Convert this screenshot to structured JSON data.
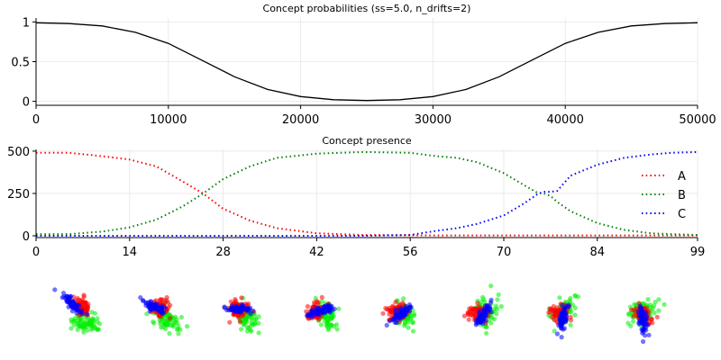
{
  "chart_data": [
    {
      "type": "line",
      "title": "Concept probabilities (ss=5.0, n_drifts=2)",
      "xlim": [
        0,
        50000
      ],
      "ylim": [
        -0.05,
        1.05
      ],
      "xticks": [
        0,
        10000,
        20000,
        30000,
        40000,
        50000
      ],
      "yticks": [
        0.0,
        0.5,
        1.0
      ],
      "grid": true,
      "series": [
        {
          "color": "#000000",
          "x": [
            0,
            2500,
            5000,
            7500,
            10000,
            12500,
            15000,
            17500,
            20000,
            22500,
            25000,
            27500,
            30000,
            32500,
            35000,
            37500,
            40000,
            42500,
            45000,
            47500,
            50000
          ],
          "values": [
            0.99,
            0.98,
            0.95,
            0.87,
            0.73,
            0.52,
            0.31,
            0.15,
            0.06,
            0.02,
            0.01,
            0.02,
            0.06,
            0.15,
            0.31,
            0.52,
            0.73,
            0.87,
            0.95,
            0.98,
            0.99
          ]
        }
      ]
    },
    {
      "type": "line",
      "title": "Concept presence",
      "xlim": [
        0,
        99
      ],
      "ylim": [
        0,
        500
      ],
      "xticks": [
        0,
        14,
        28,
        42,
        56,
        70,
        84,
        99
      ],
      "yticks": [
        0,
        250,
        500
      ],
      "grid": true,
      "legend_position": "right",
      "x": [
        0,
        5,
        10,
        14,
        18,
        22,
        25,
        28,
        32,
        36,
        42,
        49,
        56,
        60,
        63,
        66,
        70,
        73,
        75,
        76,
        77,
        78,
        80,
        84,
        88,
        92,
        95,
        99
      ],
      "series": [
        {
          "name": "A",
          "color": "#ff0000",
          "values": [
            490,
            490,
            470,
            450,
            410,
            320,
            250,
            160,
            90,
            45,
            15,
            5,
            3,
            2,
            2,
            2,
            2,
            2,
            2,
            2,
            2,
            2,
            2,
            2,
            2,
            2,
            2,
            2
          ]
        },
        {
          "name": "B",
          "color": "#008000",
          "values": [
            10,
            10,
            25,
            50,
            95,
            175,
            250,
            335,
            410,
            460,
            485,
            495,
            490,
            470,
            460,
            435,
            370,
            300,
            255,
            250,
            235,
            200,
            145,
            75,
            35,
            15,
            10,
            5
          ]
        },
        {
          "name": "C",
          "color": "#0000ff",
          "values": [
            0,
            0,
            0,
            0,
            0,
            0,
            0,
            0,
            0,
            0,
            0,
            0,
            5,
            30,
            45,
            70,
            120,
            190,
            245,
            260,
            260,
            265,
            355,
            420,
            460,
            480,
            490,
            495
          ]
        }
      ]
    },
    {
      "type": "scatter",
      "title": "",
      "panel_count": 8,
      "colors": [
        "#ff0000",
        "#00ee00",
        "#0000ff"
      ]
    }
  ]
}
